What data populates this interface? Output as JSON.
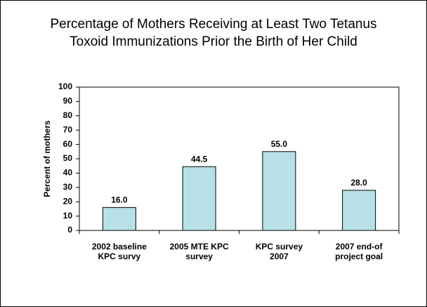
{
  "chart_data": {
    "type": "bar",
    "title": "Percentage of Mothers Receiving at Least Two Tetanus Toxoid Immunizations Prior the Birth of Her Child",
    "y_label": "Percent of mothers",
    "categories": [
      "2002 baseline\nKPC survy",
      "2005 MTE KPC\nsurvey",
      "KPC survey\n2007",
      "2007 end-of\nproject goal"
    ],
    "values": [
      16,
      44.5,
      55,
      28
    ],
    "value_labels": [
      "16.0",
      "44.5",
      "55.0",
      "28.0"
    ],
    "color": "#b7e1e6",
    "ylim": [
      0,
      100
    ],
    "yticks": [
      0,
      10,
      20,
      30,
      40,
      50,
      60,
      70,
      80,
      90,
      100
    ],
    "grid": false
  }
}
